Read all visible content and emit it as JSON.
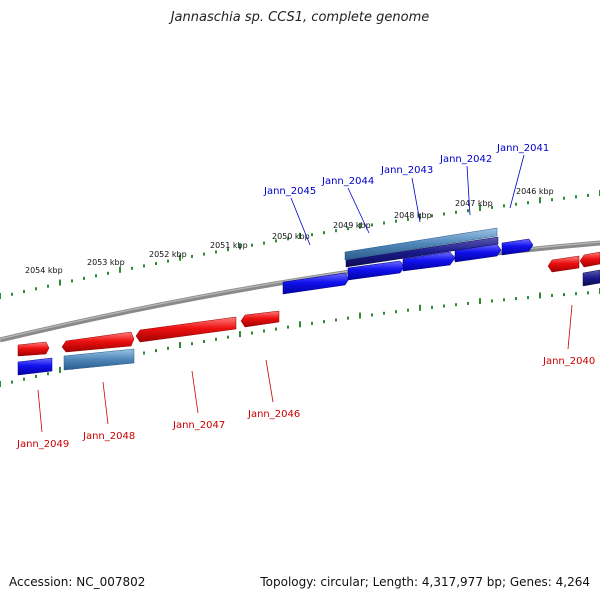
{
  "title": "Jannaschia sp. CCS1, complete genome",
  "accession_text": "Accession: NC_007802",
  "topology_text": "Topology: circular; Length: 4,317,977 bp; Genes: 4,264",
  "colors": {
    "backbone": "#8a8a8a",
    "tick": "#2e8b2e",
    "forward_gene": "#ee1111",
    "reverse_gene": "#1111ee",
    "reverse_gene_dark": "#1a1a8c",
    "rna_gene": "#4f86b8",
    "forward_label": "#cc0000",
    "reverse_label": "#0000cc"
  },
  "kbp_labels": [
    "2054 kbp",
    "2053 kbp",
    "2052 kbp",
    "2051 kbp",
    "2050 kbp",
    "2049 kbp",
    "2048 kbp",
    "2047 kbp",
    "2046 kbp"
  ],
  "gene_labels": {
    "reverse": [
      "Jann_2045",
      "Jann_2044",
      "Jann_2043",
      "Jann_2042",
      "Jann_2041"
    ],
    "forward": [
      "Jann_2049",
      "Jann_2048",
      "Jann_2047",
      "Jann_2046",
      "Jann_2040"
    ]
  }
}
